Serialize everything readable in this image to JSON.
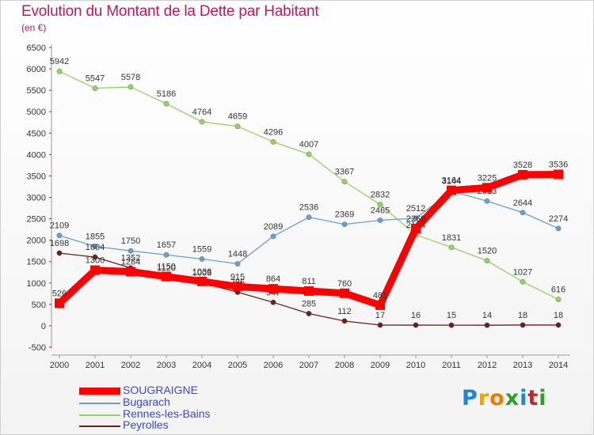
{
  "chart_data": {
    "type": "line",
    "title": "Evolution du Montant de la Dette par Habitant",
    "subtitle": "(en €)",
    "x": [
      "2000",
      "2001",
      "2002",
      "2003",
      "2004",
      "2005",
      "2006",
      "2007",
      "2008",
      "2009",
      "2010",
      "2011",
      "2012",
      "2013",
      "2014"
    ],
    "ylim": [
      -500,
      6500
    ],
    "yticks": [
      -500,
      0,
      500,
      1000,
      1500,
      2000,
      2500,
      3000,
      3500,
      4000,
      4500,
      5000,
      5500,
      6000,
      6500
    ],
    "grid": false,
    "legend": "bottom-left",
    "series": [
      {
        "name": "Rennes-les-Bains",
        "color": "#8fd45c",
        "values": [
          5942,
          5547,
          5578,
          5186,
          4764,
          4659,
          4296,
          4007,
          3367,
          2832,
          2124,
          1831,
          1520,
          1027,
          616
        ]
      },
      {
        "name": "Bugarach",
        "color": "#6aa0cc",
        "values": [
          2109,
          1855,
          1750,
          1657,
          1559,
          1448,
          2089,
          2536,
          2369,
          2465,
          2512,
          3144,
          2913,
          2644,
          2274
        ]
      },
      {
        "name": "Peyrolles",
        "color": "#6b1f1f",
        "values": [
          1698,
          1604,
          1352,
          1120,
          1003,
          785,
          547,
          285,
          112,
          17,
          16,
          15,
          14,
          18,
          18
        ]
      },
      {
        "name": "SOUGRAIGNE",
        "color": "#ff0000",
        "values": [
          526,
          1300,
          1264,
          1150,
          1036,
          915,
          864,
          811,
          760,
          481,
          2269,
          3164,
          3225,
          3528,
          3536
        ]
      }
    ]
  },
  "legend": [
    "SOUGRAIGNE",
    "Bugarach",
    "Rennes-les-Bains",
    "Peyrolles"
  ],
  "logo": {
    "letters": [
      "P",
      "r",
      "o",
      "x",
      "i",
      "t",
      "i"
    ],
    "colors": [
      "#1a88d8",
      "#f0a000",
      "#f07a00",
      "#2ca02c",
      "#1a88d8",
      "#d02020",
      "#2ca02c"
    ]
  }
}
